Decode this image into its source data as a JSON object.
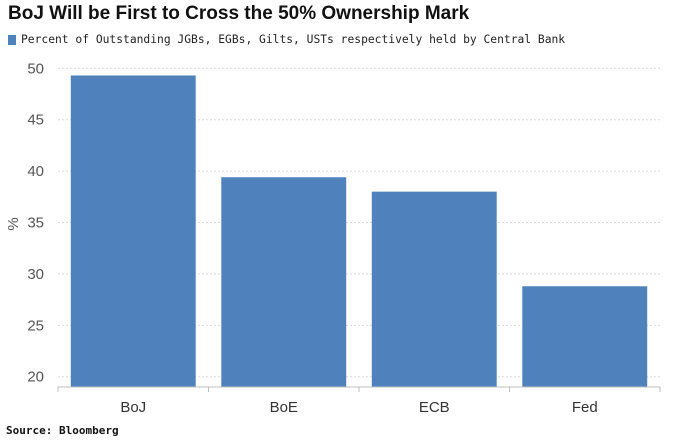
{
  "title": "BoJ Will be First to Cross the 50% Ownership Mark",
  "source": "Source: Bloomberg",
  "colors": {
    "bar": "#4f81bd",
    "grid": "#d9d9d9",
    "axis": "#bfbfbf"
  },
  "chart_data": {
    "type": "bar",
    "title": "BoJ Will be First to Cross the 50% Ownership Mark",
    "categories": [
      "BoJ",
      "BoE",
      "ECB",
      "Fed"
    ],
    "series": [
      {
        "name": "Percent of Outstanding JGBs, EGBs, Gilts, USTs respectively held by Central Bank",
        "values": [
          49.3,
          39.4,
          38.0,
          28.8
        ]
      }
    ],
    "xlabel": "",
    "ylabel": "%",
    "ylim": [
      19,
      51
    ],
    "yticks": [
      20,
      25,
      30,
      35,
      40,
      45,
      50
    ],
    "grid": true,
    "legend_position": "top-left"
  }
}
